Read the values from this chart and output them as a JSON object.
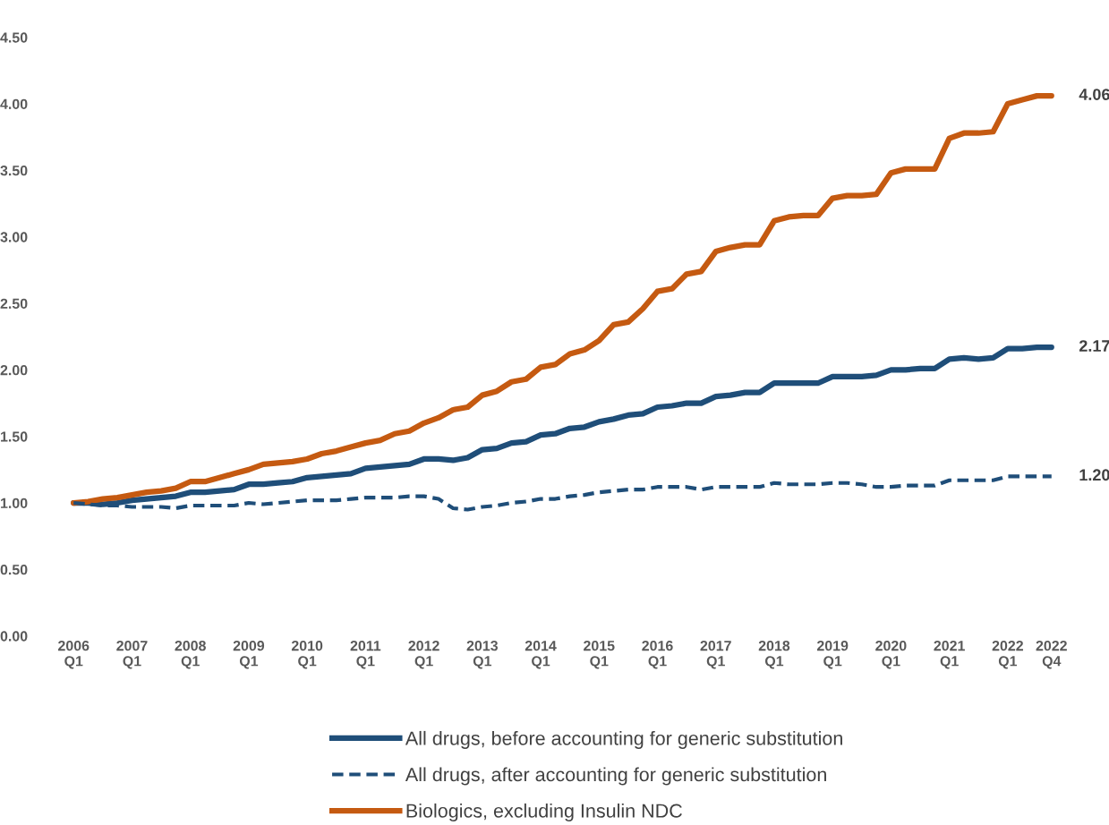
{
  "chart_data": {
    "type": "line",
    "categories": [
      "2006\nQ1",
      null,
      null,
      null,
      "2007\nQ1",
      null,
      null,
      null,
      "2008\nQ1",
      null,
      null,
      null,
      "2009\nQ1",
      null,
      null,
      null,
      "2010\nQ1",
      null,
      null,
      null,
      "2011\nQ1",
      null,
      null,
      null,
      "2012\nQ1",
      null,
      null,
      null,
      "2013\nQ1",
      null,
      null,
      null,
      "2014\nQ1",
      null,
      null,
      null,
      "2015\nQ1",
      null,
      null,
      null,
      "2016\nQ1",
      null,
      null,
      null,
      "2017\nQ1",
      null,
      null,
      null,
      "2018\nQ1",
      null,
      null,
      null,
      "2019\nQ1",
      null,
      null,
      null,
      "2020\nQ1",
      null,
      null,
      null,
      "2021\nQ1",
      null,
      null,
      null,
      "2022\nQ1",
      null,
      null,
      "2022\nQ4"
    ],
    "series": [
      {
        "name": "All drugs, before accounting for generic substitution",
        "color": "#1f4e79",
        "line_style": "solid",
        "values": [
          1.0,
          1.0,
          0.99,
          1.0,
          1.02,
          1.03,
          1.04,
          1.05,
          1.08,
          1.08,
          1.09,
          1.1,
          1.14,
          1.14,
          1.15,
          1.16,
          1.19,
          1.2,
          1.21,
          1.22,
          1.26,
          1.27,
          1.28,
          1.29,
          1.33,
          1.33,
          1.32,
          1.34,
          1.4,
          1.41,
          1.45,
          1.46,
          1.51,
          1.52,
          1.56,
          1.57,
          1.61,
          1.63,
          1.66,
          1.67,
          1.72,
          1.73,
          1.75,
          1.75,
          1.8,
          1.81,
          1.83,
          1.83,
          1.9,
          1.9,
          1.9,
          1.9,
          1.95,
          1.95,
          1.95,
          1.96,
          2.0,
          2.0,
          2.01,
          2.01,
          2.08,
          2.09,
          2.08,
          2.09,
          2.16,
          2.16,
          2.17,
          2.17
        ],
        "value_labels": [
          null,
          null,
          null,
          null,
          null,
          null,
          null,
          null,
          null,
          null,
          null,
          null,
          null,
          null,
          null,
          null,
          null,
          null,
          null,
          null,
          null,
          null,
          null,
          null,
          null,
          null,
          null,
          null,
          null,
          null,
          null,
          null,
          null,
          null,
          null,
          null,
          null,
          null,
          null,
          null,
          null,
          null,
          null,
          null,
          null,
          null,
          null,
          null,
          null,
          null,
          null,
          null,
          null,
          null,
          null,
          null,
          null,
          null,
          null,
          null,
          null,
          null,
          null,
          null,
          null,
          null,
          null,
          "2.17"
        ]
      },
      {
        "name": "All drugs, after accounting for generic substitution",
        "color": "#1f4e79",
        "line_style": "dashed",
        "values": [
          1.0,
          0.99,
          0.98,
          0.98,
          0.97,
          0.97,
          0.97,
          0.96,
          0.98,
          0.98,
          0.98,
          0.98,
          1.0,
          0.99,
          1.0,
          1.01,
          1.02,
          1.02,
          1.02,
          1.03,
          1.04,
          1.04,
          1.04,
          1.05,
          1.05,
          1.03,
          0.96,
          0.95,
          0.97,
          0.98,
          1.0,
          1.01,
          1.03,
          1.03,
          1.05,
          1.06,
          1.08,
          1.09,
          1.1,
          1.1,
          1.12,
          1.12,
          1.12,
          1.1,
          1.12,
          1.12,
          1.12,
          1.12,
          1.15,
          1.14,
          1.14,
          1.14,
          1.15,
          1.15,
          1.14,
          1.12,
          1.12,
          1.13,
          1.13,
          1.13,
          1.17,
          1.17,
          1.17,
          1.17,
          1.2,
          1.2,
          1.2,
          1.2
        ],
        "value_labels": [
          null,
          null,
          null,
          null,
          null,
          null,
          null,
          null,
          null,
          null,
          null,
          null,
          null,
          null,
          null,
          null,
          null,
          null,
          null,
          null,
          null,
          null,
          null,
          null,
          null,
          null,
          null,
          null,
          null,
          null,
          null,
          null,
          null,
          null,
          null,
          null,
          null,
          null,
          null,
          null,
          null,
          null,
          null,
          null,
          null,
          null,
          null,
          null,
          null,
          null,
          null,
          null,
          null,
          null,
          null,
          null,
          null,
          null,
          null,
          null,
          null,
          null,
          null,
          null,
          null,
          null,
          null,
          "1.20"
        ]
      },
      {
        "name": "Biologics, excluding Insulin NDC",
        "color": "#c55a11",
        "line_style": "solid",
        "values": [
          1.0,
          1.01,
          1.03,
          1.04,
          1.06,
          1.08,
          1.09,
          1.11,
          1.16,
          1.16,
          1.19,
          1.22,
          1.25,
          1.29,
          1.3,
          1.31,
          1.33,
          1.37,
          1.39,
          1.42,
          1.45,
          1.47,
          1.52,
          1.54,
          1.6,
          1.64,
          1.7,
          1.72,
          1.81,
          1.84,
          1.91,
          1.93,
          2.02,
          2.04,
          2.12,
          2.15,
          2.22,
          2.34,
          2.36,
          2.46,
          2.59,
          2.61,
          2.72,
          2.74,
          2.89,
          2.92,
          2.94,
          2.94,
          3.12,
          3.15,
          3.16,
          3.16,
          3.29,
          3.31,
          3.31,
          3.32,
          3.48,
          3.51,
          3.51,
          3.51,
          3.74,
          3.78,
          3.78,
          3.79,
          4.0,
          4.03,
          4.06,
          4.06
        ],
        "value_labels": [
          null,
          null,
          null,
          null,
          null,
          null,
          null,
          null,
          null,
          null,
          null,
          null,
          null,
          null,
          null,
          null,
          null,
          null,
          null,
          null,
          null,
          null,
          null,
          null,
          null,
          null,
          null,
          null,
          null,
          null,
          null,
          null,
          null,
          null,
          null,
          null,
          null,
          null,
          null,
          null,
          null,
          null,
          null,
          null,
          null,
          null,
          null,
          null,
          null,
          null,
          null,
          null,
          null,
          null,
          null,
          null,
          null,
          null,
          null,
          null,
          null,
          null,
          null,
          null,
          null,
          null,
          null,
          "4.06"
        ]
      }
    ],
    "ylim": [
      0,
      4.5
    ],
    "yticks": [
      {
        "value": 0,
        "label": "0.00"
      },
      {
        "value": 0.5,
        "label": "0.50"
      },
      {
        "value": 1,
        "label": "1.00"
      },
      {
        "value": 1.5,
        "label": "1.50"
      },
      {
        "value": 2,
        "label": "2.00"
      },
      {
        "value": 2.5,
        "label": "2.50"
      },
      {
        "value": 3,
        "label": "3.00"
      },
      {
        "value": 3.5,
        "label": "3.50"
      },
      {
        "value": 4,
        "label": "4.00"
      },
      {
        "value": 4.5,
        "label": "4.50"
      }
    ],
    "legend": "bottom",
    "grid": false
  }
}
